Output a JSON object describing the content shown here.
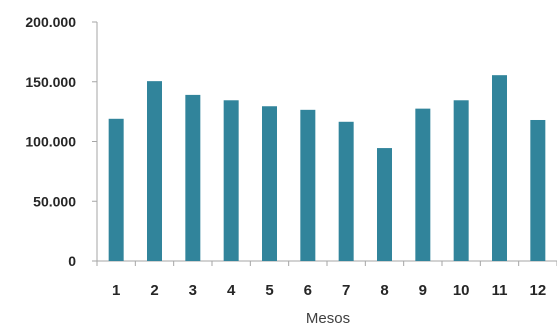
{
  "chart_data": {
    "type": "bar",
    "title": "",
    "xlabel": "Mesos",
    "ylabel": "",
    "categories": [
      "1",
      "2",
      "3",
      "4",
      "5",
      "6",
      "7",
      "8",
      "9",
      "10",
      "11",
      "12"
    ],
    "values": [
      119000,
      150500,
      139000,
      134500,
      129500,
      126500,
      116500,
      94500,
      127500,
      134500,
      155500,
      118000
    ],
    "ylim": [
      0,
      200000
    ],
    "yticks": [
      0,
      50000,
      100000,
      150000,
      200000
    ],
    "ytick_labels": [
      "0",
      "50.000",
      "100.000",
      "150.000",
      "200.000"
    ],
    "grid": false,
    "colors": {
      "bar": "#31849B",
      "axis": "#A6A6A6"
    }
  }
}
